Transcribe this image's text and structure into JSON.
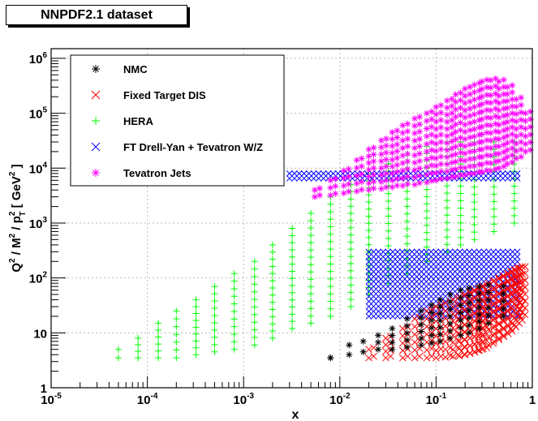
{
  "title_box": "NNPDF2.1 dataset",
  "chart_data": {
    "type": "scatter",
    "title": "NNPDF2.1 dataset",
    "xlabel": "x",
    "ylabel": "Q² / M² / p²_T [ GeV² ]",
    "x_scale": "log",
    "y_scale": "log",
    "xlim": [
      1e-05,
      1
    ],
    "ylim": [
      1,
      1500000
    ],
    "grid": true,
    "legend_position": "top-left",
    "x_ticks": [
      {
        "value": 1e-05,
        "base": "10",
        "exp": "-5"
      },
      {
        "value": 0.0001,
        "base": "10",
        "exp": "-4"
      },
      {
        "value": 0.001,
        "base": "10",
        "exp": "-3"
      },
      {
        "value": 0.01,
        "base": "10",
        "exp": "-2"
      },
      {
        "value": 0.1,
        "base": "10",
        "exp": "-1"
      },
      {
        "value": 1,
        "base": "1",
        "exp": ""
      }
    ],
    "y_ticks": [
      {
        "value": 1,
        "base": "1",
        "exp": ""
      },
      {
        "value": 10,
        "base": "10",
        "exp": ""
      },
      {
        "value": 100,
        "base": "10",
        "exp": "2"
      },
      {
        "value": 1000,
        "base": "10",
        "exp": "3"
      },
      {
        "value": 10000,
        "base": "10",
        "exp": "4"
      },
      {
        "value": 100000,
        "base": "10",
        "exp": "5"
      },
      {
        "value": 1000000,
        "base": "10",
        "exp": "6"
      }
    ],
    "series": [
      {
        "name": "NMC",
        "color": "#000000",
        "marker": "asterisk",
        "x_values": [
          0.008,
          0.0125,
          0.0175,
          0.025,
          0.035,
          0.05,
          0.07,
          0.09,
          0.11,
          0.14,
          0.18,
          0.22,
          0.28,
          0.35,
          0.5
        ],
        "q2_min": [
          3.5,
          4,
          4.5,
          5,
          5,
          5.5,
          6,
          6.5,
          7,
          8,
          9,
          10,
          12,
          15,
          20
        ],
        "q2_max": [
          3.5,
          6,
          7,
          9,
          12,
          18,
          25,
          32,
          40,
          50,
          60,
          65,
          70,
          75,
          70
        ]
      },
      {
        "name": "Fixed Target DIS",
        "color": "#ff0000",
        "marker": "cross",
        "x_values": [
          0.02,
          0.03,
          0.045,
          0.06,
          0.08,
          0.1,
          0.125,
          0.15,
          0.175,
          0.2,
          0.225,
          0.25,
          0.275,
          0.3,
          0.35,
          0.4,
          0.45,
          0.5,
          0.55,
          0.6,
          0.65,
          0.7,
          0.75
        ],
        "q2_min": [
          3.5,
          3.5,
          3.5,
          3.5,
          3.5,
          3.5,
          3.6,
          3.7,
          3.8,
          4,
          4.2,
          4.5,
          4.8,
          5,
          6,
          7,
          8,
          9,
          10,
          12,
          14,
          16,
          20
        ],
        "q2_max": [
          5,
          8,
          12,
          18,
          25,
          30,
          35,
          40,
          45,
          50,
          55,
          60,
          65,
          70,
          80,
          90,
          100,
          110,
          120,
          130,
          140,
          150,
          150
        ]
      },
      {
        "name": "HERA",
        "color": "#00ff00",
        "marker": "plus",
        "x_values": [
          5e-05,
          8e-05,
          0.00013,
          0.0002,
          0.00032,
          0.0005,
          0.0008,
          0.0013,
          0.002,
          0.0032,
          0.005,
          0.008,
          0.013,
          0.02,
          0.032,
          0.05,
          0.08,
          0.13,
          0.18,
          0.25,
          0.4,
          0.65
        ],
        "q2_min": [
          3.5,
          3.5,
          3.5,
          3.5,
          4,
          4.5,
          5,
          6,
          8,
          12,
          15,
          20,
          30,
          50,
          80,
          120,
          200,
          300,
          400,
          500,
          700,
          1000
        ],
        "q2_max": [
          5,
          8,
          15,
          25,
          40,
          70,
          120,
          200,
          400,
          800,
          1500,
          3000,
          5000,
          8000,
          12000,
          18000,
          25000,
          30000,
          30000,
          30000,
          30000,
          30000
        ]
      },
      {
        "name": "FT Drell-Yan + Tevatron W/Z",
        "color": "#0000ff",
        "marker": "cross",
        "bands": [
          {
            "x_start": 0.003,
            "x_end": 0.7,
            "q2_min": 6500,
            "q2_max": 8000
          },
          {
            "x_start": 0.02,
            "x_end": 0.7,
            "q2_min": 20,
            "q2_max": 300
          }
        ]
      },
      {
        "name": "Tevatron Jets",
        "color": "#ff00ff",
        "marker": "asterisk",
        "x_values": [
          0.0055,
          0.008,
          0.011,
          0.015,
          0.02,
          0.027,
          0.035,
          0.045,
          0.06,
          0.08,
          0.1,
          0.13,
          0.16,
          0.2,
          0.25,
          0.3,
          0.37,
          0.45,
          0.55,
          0.68,
          0.85
        ],
        "q2_min": [
          3000,
          3200,
          3500,
          3800,
          4000,
          4200,
          4500,
          4800,
          5000,
          5500,
          6000,
          6500,
          7000,
          7500,
          8000,
          8500,
          9000,
          10000,
          12000,
          15000,
          20000
        ],
        "q2_max": [
          4000,
          6000,
          9000,
          14000,
          22000,
          32000,
          45000,
          60000,
          80000,
          100000,
          130000,
          170000,
          220000,
          280000,
          330000,
          380000,
          400000,
          380000,
          300000,
          180000,
          100000
        ]
      }
    ]
  }
}
